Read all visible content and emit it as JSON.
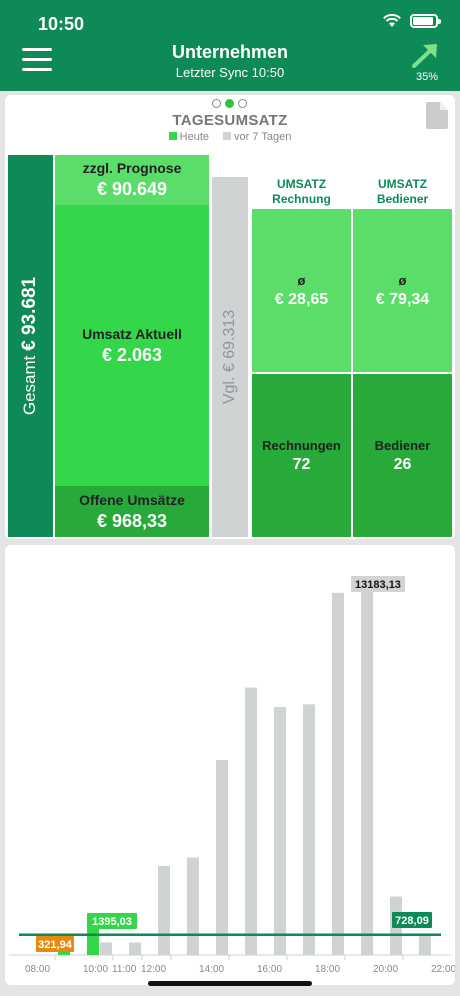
{
  "status": {
    "time": "10:50"
  },
  "header": {
    "title": "Unternehmen",
    "subtitle": "Letzter Sync 10:50",
    "trend_percent": "35%"
  },
  "card": {
    "title": "TAGESUMSATZ",
    "legend": {
      "today": "Heute",
      "past": "vor 7 Tagen",
      "today_color": "#34d74a",
      "past_color": "#cfd3d4"
    },
    "gesamt": {
      "label": "Gesamt",
      "value": "€ 93.681"
    },
    "prognose": {
      "label": "zzgl. Prognose",
      "value": "€ 90.649"
    },
    "aktuell": {
      "label": "Umsatz Aktuell",
      "value": "€ 2.063"
    },
    "offen": {
      "label": "Offene Umsätze",
      "value": "€ 968,33"
    },
    "vergleich": "Vgl. € 69.313",
    "rechnung": {
      "head": "UMSATZ",
      "sub": "Rechnung",
      "avg_label": "ø",
      "avg": "€ 28,65",
      "count_label": "Rechnungen",
      "count": "72"
    },
    "bediener": {
      "head": "UMSATZ",
      "sub": "Bediener",
      "avg_label": "ø",
      "avg": "€ 79,34",
      "count_label": "Bediener",
      "count": "26"
    }
  },
  "chart_data": {
    "type": "bar",
    "categories": [
      "08:00",
      "09:00",
      "10:00",
      "11:00",
      "12:00",
      "13:00",
      "14:00",
      "15:00",
      "16:00",
      "17:00",
      "18:00",
      "19:00",
      "20:00",
      "21:00",
      "22:00"
    ],
    "series": [
      {
        "values": [
          null,
          321.94,
          1395.03,
          null,
          null,
          null,
          null,
          null,
          null,
          null,
          null,
          null,
          null,
          null,
          null
        ],
        "color": "#34d74a"
      },
      {
        "values": [
          0,
          0,
          450,
          450,
          3200,
          3500,
          7000,
          9600,
          8900,
          9000,
          13000,
          13183.13,
          2100,
          700,
          null
        ],
        "color": "#cfd3d4"
      }
    ],
    "reference_line": 728.09,
    "ylim": [
      0,
      14000
    ],
    "x_tick_labels": [
      "08:00",
      "10:00",
      "11:00",
      "12:00",
      "14:00",
      "16:00",
      "18:00",
      "20:00",
      "22:00"
    ],
    "data_labels": [
      {
        "text": "321,94",
        "color": "#e98a10"
      },
      {
        "text": "1395,03",
        "color": "#34d74a"
      },
      {
        "text": "13183,13",
        "color": "#d2d4d4"
      },
      {
        "text": "728,09",
        "color": "#0e8a56"
      }
    ]
  }
}
